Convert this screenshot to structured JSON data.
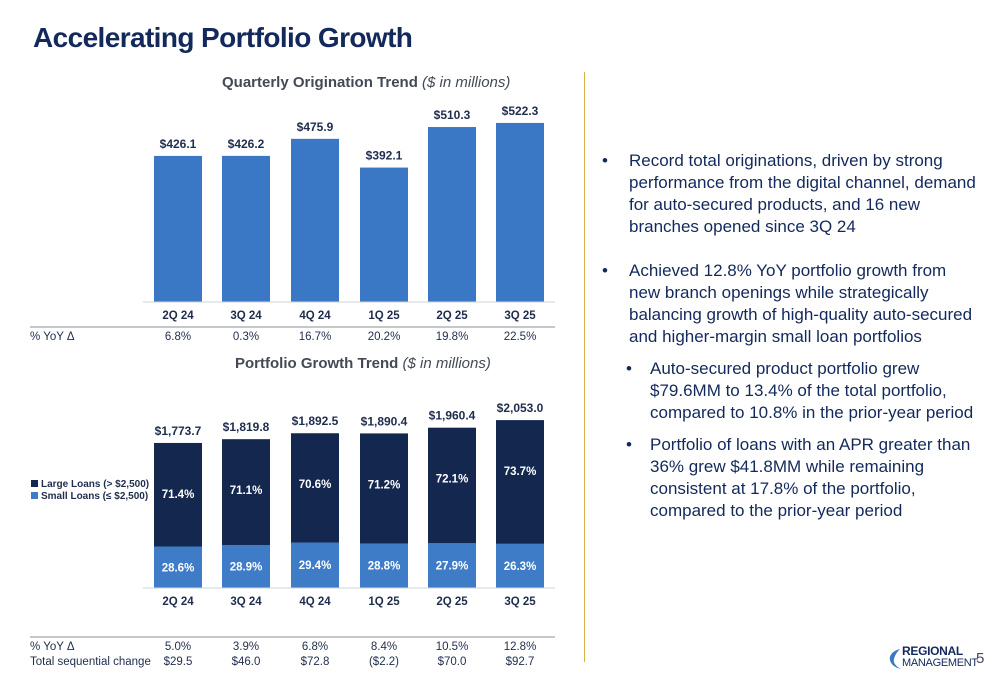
{
  "title": "Accelerating Portfolio Growth",
  "page_number": "5",
  "logo": {
    "line1": "REGIONAL",
    "line2": "MANAGEMENT"
  },
  "colors": {
    "bar_blue": "#3a77c5",
    "dark_navy": "#14274f",
    "light_blue": "#3f7cc7",
    "title_navy": "#13295c",
    "divider": "#d9b24a"
  },
  "chart_data": [
    {
      "type": "bar",
      "title": "Quarterly Origination Trend",
      "subtitle": "($ in millions)",
      "categories": [
        "2Q 24",
        "3Q 24",
        "4Q 24",
        "1Q 25",
        "2Q 25",
        "3Q 25"
      ],
      "values": [
        426.1,
        426.2,
        475.9,
        392.1,
        510.3,
        522.3
      ],
      "value_labels": [
        "$426.1",
        "$426.2",
        "$475.9",
        "$392.1",
        "$510.3",
        "$522.3"
      ],
      "ylim": [
        0,
        560
      ],
      "table_rows": [
        {
          "label": "% YoY Δ",
          "values": [
            "6.8%",
            "0.3%",
            "16.7%",
            "20.2%",
            "19.8%",
            "22.5%"
          ]
        }
      ]
    },
    {
      "type": "bar",
      "stacked": true,
      "title": "Portfolio Growth Trend",
      "subtitle": "($ in millions)",
      "categories": [
        "2Q 24",
        "3Q 24",
        "4Q 24",
        "1Q 25",
        "2Q 25",
        "3Q 25"
      ],
      "totals": [
        1773.7,
        1819.8,
        1892.5,
        1890.4,
        1960.4,
        2053.0
      ],
      "total_labels": [
        "$1,773.7",
        "$1,819.8",
        "$1,892.5",
        "$1,890.4",
        "$1,960.4",
        "$2,053.0"
      ],
      "ylim": [
        0,
        2250
      ],
      "series": [
        {
          "name": "Small Loans (≤ $2,500)",
          "pct": [
            28.6,
            28.9,
            29.4,
            28.8,
            27.9,
            26.3
          ],
          "labels": [
            "28.6%",
            "28.9%",
            "29.4%",
            "28.8%",
            "27.9%",
            "26.3%"
          ]
        },
        {
          "name": "Large Loans (> $2,500)",
          "pct": [
            71.4,
            71.1,
            70.6,
            71.2,
            72.1,
            73.7
          ],
          "labels": [
            "71.4%",
            "71.1%",
            "70.6%",
            "71.2%",
            "72.1%",
            "73.7%"
          ]
        }
      ],
      "legend": "left",
      "table_rows": [
        {
          "label": "% YoY Δ",
          "values": [
            "5.0%",
            "3.9%",
            "6.8%",
            "8.4%",
            "10.5%",
            "12.8%"
          ]
        },
        {
          "label": "Total sequential change",
          "values": [
            "$29.5",
            "$46.0",
            "$72.8",
            "($2.2)",
            "$70.0",
            "$92.7"
          ]
        }
      ]
    }
  ],
  "bullets": [
    "Record total originations, driven by strong performance from the digital channel, demand for auto-secured products, and 16 new branches opened since 3Q 24",
    "Achieved 12.8% YoY portfolio growth from new branch openings while strategically balancing growth of high-quality auto-secured and higher-margin small loan portfolios"
  ],
  "sub_bullets": [
    "Auto-secured product portfolio grew $79.6MM to 13.4% of the total portfolio, compared to 10.8% in the prior-year period",
    "Portfolio of loans with an APR greater than 36% grew $41.8MM while remaining consistent at 17.8% of the portfolio, compared to the prior-year period"
  ],
  "bullet_glyph": "•"
}
